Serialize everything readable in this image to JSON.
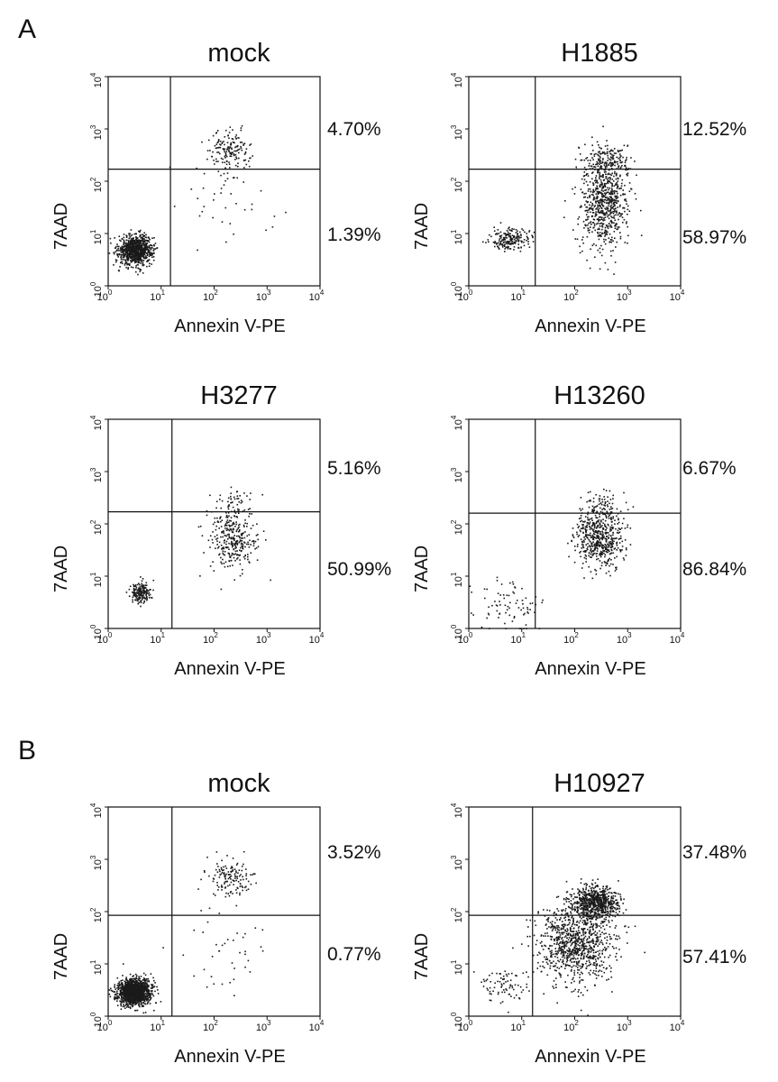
{
  "panel_labels": {
    "a": "A",
    "b": "B"
  },
  "chart_data": [
    {
      "type": "scatter",
      "panel": "A",
      "title": "mock",
      "xlabel": "Annexin V-PE",
      "ylabel": "7AAD",
      "xscale": "log",
      "yscale": "log",
      "xlim": [
        1,
        10000
      ],
      "ylim": [
        1,
        10000
      ],
      "gate": {
        "x": 15,
        "y": 170
      },
      "quadrant_labels": {
        "upper_right": "4.70%",
        "lower_right": "1.39%"
      },
      "populations": [
        {
          "quadrant": "lower-left",
          "center": [
            3.2,
            5
          ],
          "spread": [
            0.16,
            0.14
          ],
          "count": 900
        },
        {
          "quadrant": "upper-right",
          "center": [
            200,
            400
          ],
          "spread": [
            0.2,
            0.18
          ],
          "count": 160
        },
        {
          "quadrant": "lower-right",
          "center": [
            150,
            40
          ],
          "spread": [
            0.45,
            0.4
          ],
          "count": 40
        }
      ]
    },
    {
      "type": "scatter",
      "panel": "A",
      "title": "H1885",
      "xlabel": "Annexin V-PE",
      "ylabel": "7AAD",
      "xscale": "log",
      "yscale": "log",
      "xlim": [
        1,
        10000
      ],
      "ylim": [
        1,
        10000
      ],
      "gate": {
        "x": 18,
        "y": 170
      },
      "quadrant_labels": {
        "upper_right": "12.52%",
        "lower_right": "58.97%"
      },
      "populations": [
        {
          "quadrant": "lower-left",
          "center": [
            6,
            8
          ],
          "spread": [
            0.18,
            0.1
          ],
          "count": 200
        },
        {
          "quadrant": "lower-right",
          "center": [
            350,
            40
          ],
          "spread": [
            0.22,
            0.45
          ],
          "count": 700
        },
        {
          "quadrant": "upper-right",
          "center": [
            400,
            250
          ],
          "spread": [
            0.22,
            0.16
          ],
          "count": 150
        }
      ]
    },
    {
      "type": "scatter",
      "panel": "A",
      "title": "H3277",
      "xlabel": "Annexin V-PE",
      "ylabel": "7AAD",
      "xscale": "log",
      "yscale": "log",
      "xlim": [
        1,
        10000
      ],
      "ylim": [
        1,
        10000
      ],
      "gate": {
        "x": 16,
        "y": 170
      },
      "quadrant_labels": {
        "upper_right": "5.16%",
        "lower_right": "50.99%"
      },
      "populations": [
        {
          "quadrant": "lower-left",
          "center": [
            4,
            5
          ],
          "spread": [
            0.1,
            0.1
          ],
          "count": 180
        },
        {
          "quadrant": "lower-right",
          "center": [
            220,
            50
          ],
          "spread": [
            0.22,
            0.32
          ],
          "count": 320
        },
        {
          "quadrant": "upper-right",
          "center": [
            250,
            300
          ],
          "spread": [
            0.2,
            0.15
          ],
          "count": 40
        }
      ]
    },
    {
      "type": "scatter",
      "panel": "A",
      "title": "H13260",
      "xlabel": "Annexin V-PE",
      "ylabel": "7AAD",
      "xscale": "log",
      "yscale": "log",
      "xlim": [
        1,
        10000
      ],
      "ylim": [
        1,
        10000
      ],
      "gate": {
        "x": 18,
        "y": 160
      },
      "quadrant_labels": {
        "upper_right": "6.67%",
        "lower_right": "86.84%"
      },
      "populations": [
        {
          "quadrant": "lower-right",
          "center": [
            280,
            60
          ],
          "spread": [
            0.22,
            0.3
          ],
          "count": 560
        },
        {
          "quadrant": "upper-right",
          "center": [
            350,
            250
          ],
          "spread": [
            0.15,
            0.12
          ],
          "count": 50
        },
        {
          "quadrant": "lower-left",
          "center": [
            5,
            3
          ],
          "spread": [
            0.35,
            0.3
          ],
          "count": 80
        }
      ]
    },
    {
      "type": "scatter",
      "panel": "B",
      "title": "mock",
      "xlabel": "Annexin V-PE",
      "ylabel": "7AAD",
      "xscale": "log",
      "yscale": "log",
      "xlim": [
        1,
        10000
      ],
      "ylim": [
        1,
        10000
      ],
      "gate": {
        "x": 16,
        "y": 85
      },
      "quadrant_labels": {
        "upper_right": "3.52%",
        "lower_right": "0.77%"
      },
      "populations": [
        {
          "quadrant": "lower-left",
          "center": [
            3,
            3
          ],
          "spread": [
            0.15,
            0.12
          ],
          "count": 1500
        },
        {
          "quadrant": "upper-right",
          "center": [
            200,
            450
          ],
          "spread": [
            0.2,
            0.16
          ],
          "count": 140
        },
        {
          "quadrant": "lower-right",
          "center": [
            150,
            15
          ],
          "spread": [
            0.4,
            0.45
          ],
          "count": 40
        }
      ]
    },
    {
      "type": "scatter",
      "panel": "B",
      "title": "H10927",
      "xlabel": "Annexin V-PE",
      "ylabel": "7AAD",
      "xscale": "log",
      "yscale": "log",
      "xlim": [
        1,
        10000
      ],
      "ylim": [
        1,
        10000
      ],
      "gate": {
        "x": 16,
        "y": 85
      },
      "quadrant_labels": {
        "upper_right": "37.48%",
        "lower_right": "57.41%"
      },
      "populations": [
        {
          "quadrant": "upper-right",
          "center": [
            250,
            150
          ],
          "spread": [
            0.22,
            0.16
          ],
          "count": 700
        },
        {
          "quadrant": "lower-right",
          "center": [
            100,
            25
          ],
          "spread": [
            0.35,
            0.38
          ],
          "count": 900
        },
        {
          "quadrant": "lower-left",
          "center": [
            5,
            4
          ],
          "spread": [
            0.22,
            0.15
          ],
          "count": 80
        }
      ]
    }
  ]
}
